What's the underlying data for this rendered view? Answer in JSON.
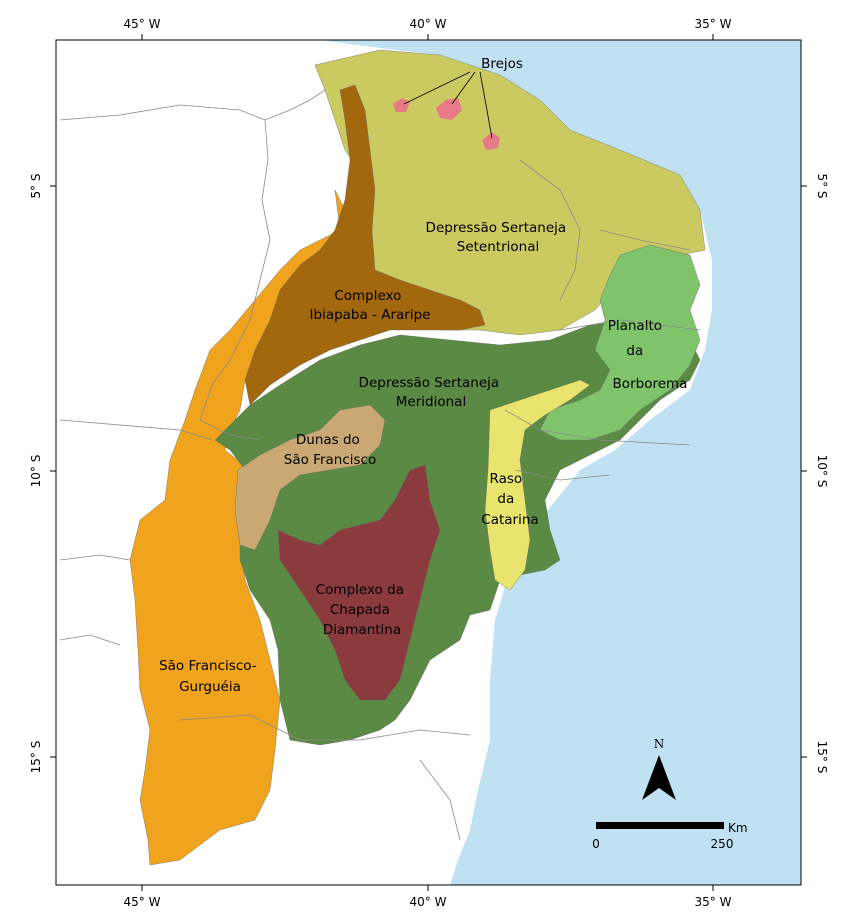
{
  "map": {
    "frame_ticks": {
      "top": [
        "45° W",
        "40° W",
        "35° W"
      ],
      "bottom": [
        "45° W",
        "40° W",
        "35° W"
      ],
      "left": [
        "5° S",
        "10° S",
        "15° S"
      ],
      "right": [
        "5° S",
        "10° S",
        "15° S"
      ]
    },
    "regions": [
      {
        "id": "depressao-setentrional",
        "lines": [
          "Depressão Sertaneja",
          "Setentrional"
        ],
        "color": "#cbca61"
      },
      {
        "id": "complexo-ibiapaba",
        "lines": [
          "Complexo",
          "Ibiapaba - Araripe"
        ],
        "color": "#a3680e"
      },
      {
        "id": "planalto-borborema",
        "lines": [
          "Planalto",
          "da",
          "Borborema"
        ],
        "color": "#7fc46a"
      },
      {
        "id": "depressao-meridional",
        "lines": [
          "Depressão Sertaneja",
          "Meridional"
        ],
        "color": "#5a8a44"
      },
      {
        "id": "dunas-sao-francisco",
        "lines": [
          "Dunas do",
          "São Francisco"
        ],
        "color": "#c9a874"
      },
      {
        "id": "raso-catarina",
        "lines": [
          "Raso",
          "da",
          "Catarina"
        ],
        "color": "#e8e46e"
      },
      {
        "id": "chapada-diamantina",
        "lines": [
          "Complexo da",
          "Chapada",
          "Diamantina"
        ],
        "color": "#8b3b3e"
      },
      {
        "id": "sao-francisco-gurgueia",
        "lines": [
          "São Francisco-",
          "Gurguéia"
        ],
        "color": "#f0a31c"
      }
    ],
    "brejos": {
      "label": "Brejos",
      "color": "#e77a86"
    },
    "ocean_color": "#bfe1f2",
    "north_arrow": {
      "label": "N"
    },
    "scale_bar": {
      "unit": "Km",
      "start": "0",
      "end": "250"
    }
  }
}
